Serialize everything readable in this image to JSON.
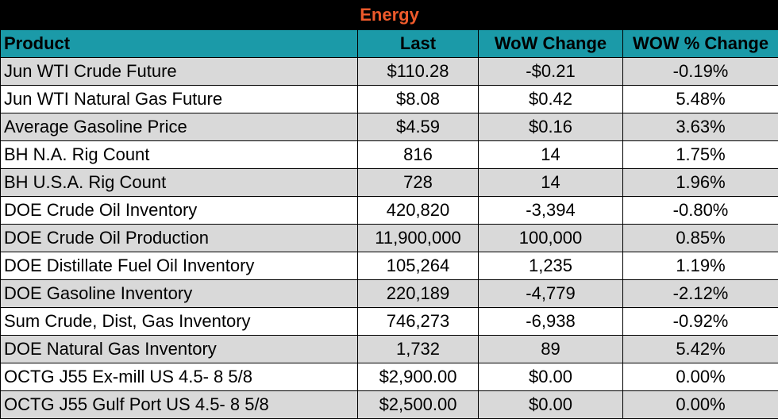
{
  "title": "Energy",
  "headers": [
    "Product",
    "Last",
    "WoW Change",
    "WOW % Change"
  ],
  "rows": [
    [
      "Jun WTI Crude Future",
      "$110.28",
      "-$0.21",
      "-0.19%"
    ],
    [
      "Jun WTI Natural Gas Future",
      "$8.08",
      "$0.42",
      "5.48%"
    ],
    [
      "Average Gasoline Price",
      "$4.59",
      "$0.16",
      "3.63%"
    ],
    [
      "BH N.A. Rig Count",
      "816",
      "14",
      "1.75%"
    ],
    [
      "BH U.S.A. Rig Count",
      "728",
      "14",
      "1.96%"
    ],
    [
      "DOE Crude Oil Inventory",
      "420,820",
      "-3,394",
      "-0.80%"
    ],
    [
      "DOE Crude Oil Production",
      "11,900,000",
      "100,000",
      "0.85%"
    ],
    [
      "DOE Distillate Fuel Oil Inventory",
      "105,264",
      "1,235",
      "1.19%"
    ],
    [
      "DOE Gasoline Inventory",
      "220,189",
      "-4,779",
      "-2.12%"
    ],
    [
      "Sum Crude, Dist, Gas Inventory",
      "746,273",
      "-6,938",
      "-0.92%"
    ],
    [
      "DOE Natural Gas Inventory",
      "1,732",
      "89",
      "5.42%"
    ],
    [
      "OCTG J55 Ex-mill US 4.5- 8 5/8",
      "$2,900.00",
      "$0.00",
      "0.00%"
    ],
    [
      "OCTG J55 Gulf Port US 4.5- 8 5/8",
      "$2,500.00",
      "$0.00",
      "0.00%"
    ]
  ],
  "colors": {
    "title_bg": "#000000",
    "title_text": "#ee5a2b",
    "header_bg": "#1b9aa8",
    "row_shade": "#d9d9d9",
    "row_plain": "#ffffff"
  }
}
